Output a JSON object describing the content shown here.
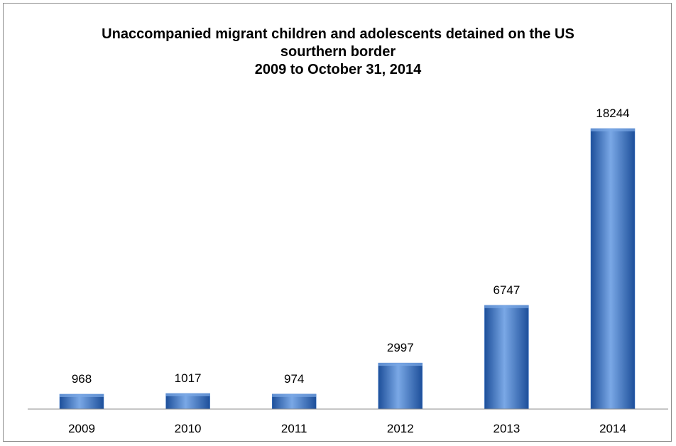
{
  "chart_data": {
    "type": "bar",
    "title": [
      "Unaccompanied migrant children and adolescents detained on the US",
      "sourthern border",
      "2009 to October 31, 2014"
    ],
    "categories": [
      "2009",
      "2010",
      "2011",
      "2012",
      "2013",
      "2014"
    ],
    "values": [
      968,
      1017,
      974,
      2997,
      6747,
      18244
    ],
    "data_labels": [
      "968",
      "1017",
      "974",
      "2997",
      "6747",
      "18244"
    ],
    "xlabel": "",
    "ylabel": "",
    "ylim": [
      0,
      18244
    ],
    "grid": false,
    "legend": "none",
    "colors": {
      "bar_light": "#7aa8e6",
      "bar_mid": "#3f78c9",
      "bar_dark": "#1d4f9a",
      "axis": "#8c8c8c"
    }
  }
}
